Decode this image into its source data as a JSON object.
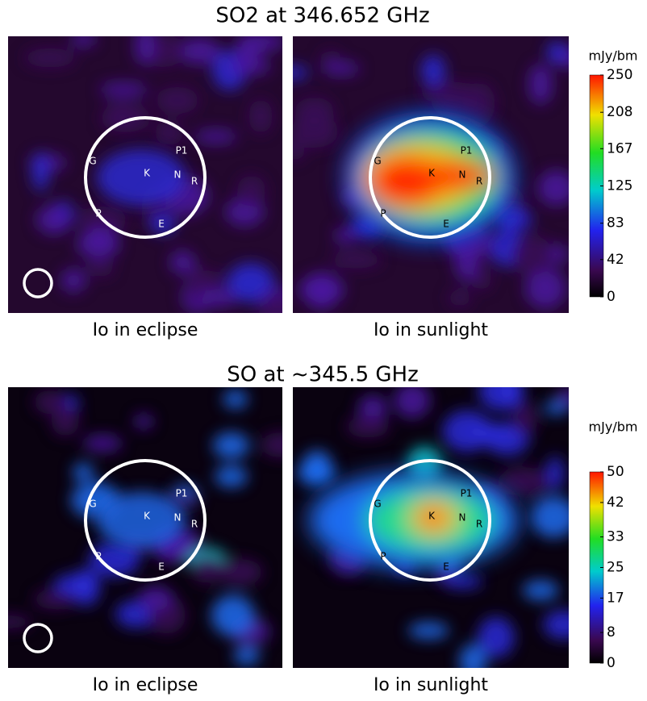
{
  "rows": [
    {
      "title": "SO2 at 346.652 GHz",
      "unit": "mJy/bm",
      "colorbar": {
        "lim": [
          0,
          250
        ],
        "ticks": [
          0,
          42,
          83,
          125,
          167,
          208,
          250
        ]
      },
      "panels": [
        {
          "caption": "Io in eclipse",
          "labels": [
            "G",
            "K",
            "N",
            "P1",
            "R",
            "P",
            "E"
          ]
        },
        {
          "caption": "Io in sunlight",
          "labels": [
            "G",
            "K",
            "N",
            "P1",
            "R",
            "P",
            "E"
          ]
        }
      ]
    },
    {
      "title": "SO at ~345.5 GHz",
      "unit": "mJy/bm",
      "colorbar": {
        "lim": [
          0,
          50
        ],
        "ticks": [
          0,
          8,
          17,
          25,
          33,
          42,
          50
        ]
      },
      "panels": [
        {
          "caption": "Io in eclipse",
          "labels": [
            "G",
            "K",
            "N",
            "P1",
            "R",
            "P",
            "E"
          ]
        },
        {
          "caption": "Io in sunlight",
          "labels": [
            "G",
            "K",
            "N",
            "P1",
            "R",
            "P",
            "E"
          ]
        }
      ]
    }
  ]
}
